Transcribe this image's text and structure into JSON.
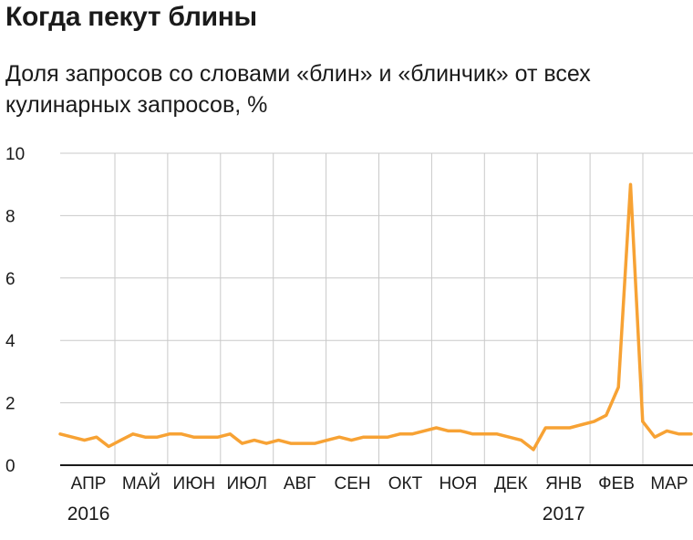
{
  "title": "Когда пекут блины",
  "subtitle": "Доля запросов со словами «блин» и «блинчик» от всех кулинарных запросов, %",
  "colors": {
    "line": "#f7a234",
    "grid": "#c9c9c9",
    "axis": "#1a1a1a"
  },
  "chart_data": {
    "type": "line",
    "ylabel": "",
    "xlabel": "",
    "ylim": [
      0,
      10
    ],
    "yticks": [
      "0",
      "2",
      "4",
      "6",
      "8",
      "10"
    ],
    "month_labels": [
      "АПР",
      "МАЙ",
      "ИЮН",
      "ИЮЛ",
      "АВГ",
      "СЕН",
      "ОКТ",
      "НОЯ",
      "ДЕК",
      "ЯНВ",
      "ФЕВ",
      "МАР"
    ],
    "year_labels": [
      {
        "label": "2016",
        "month_index": 0
      },
      {
        "label": "2017",
        "month_index": 9
      }
    ],
    "grid": true,
    "series": [
      {
        "values": [
          1.0,
          0.9,
          0.8,
          0.9,
          0.6,
          0.8,
          1.0,
          0.9,
          0.9,
          1.0,
          1.0,
          0.9,
          0.9,
          0.9,
          1.0,
          0.7,
          0.8,
          0.7,
          0.8,
          0.7,
          0.7,
          0.7,
          0.8,
          0.9,
          0.8,
          0.9,
          0.9,
          0.9,
          1.0,
          1.0,
          1.1,
          1.2,
          1.1,
          1.1,
          1.0,
          1.0,
          1.0,
          0.9,
          0.8,
          0.5,
          1.2,
          1.2,
          1.2,
          1.3,
          1.4,
          1.6,
          2.5,
          9.0,
          1.4,
          0.9,
          1.1,
          1.0,
          1.0
        ]
      }
    ]
  }
}
